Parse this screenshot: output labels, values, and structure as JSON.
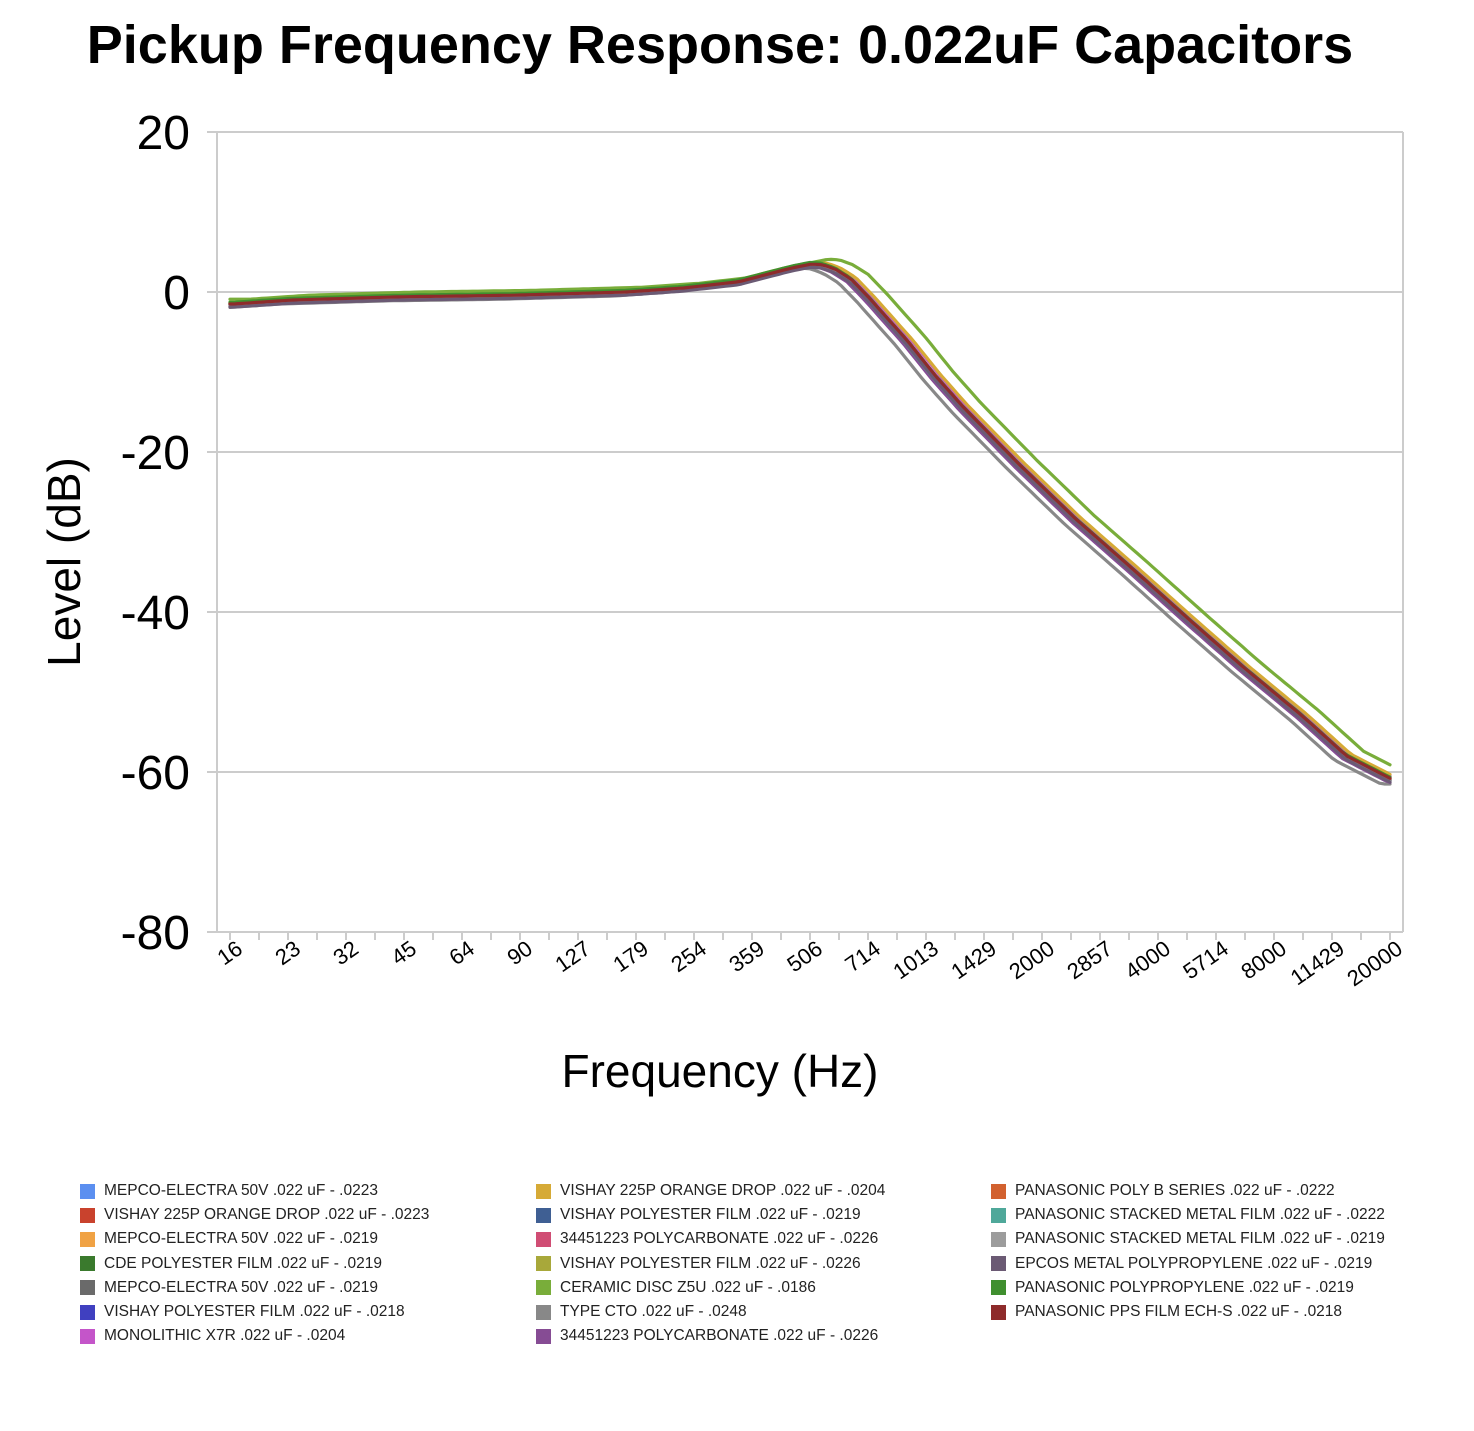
{
  "chart_data": {
    "type": "line",
    "title": "Pickup Frequency Response: 0.022uF Capacitors",
    "xlabel": "Frequency (Hz)",
    "ylabel": "Level (dB)",
    "ylim": [
      -80,
      20
    ],
    "yticks": [
      "20",
      "0",
      "-20",
      "-40",
      "-60",
      "-80"
    ],
    "x_scale": "log2 (categorical ticks)",
    "x_ticks": [
      "16",
      "23",
      "32",
      "45",
      "64",
      "90",
      "127",
      "179",
      "254",
      "359",
      "506",
      "714",
      "1013",
      "1429",
      "2000",
      "2857",
      "4000",
      "5714",
      "8000",
      "11429",
      "20000"
    ],
    "grid": "horizontal",
    "legend_position": "bottom",
    "base_curve": {
      "x": [
        16,
        23,
        32,
        45,
        64,
        90,
        127,
        179,
        254,
        359,
        450,
        506,
        560,
        600,
        650,
        714,
        800,
        900,
        1013,
        1200,
        1429,
        2000,
        2857,
        4000,
        5714,
        8000,
        11429,
        15000,
        20000
      ],
      "y": [
        -1.5,
        -1.0,
        -0.8,
        -0.6,
        -0.5,
        -0.4,
        -0.2,
        0.0,
        0.5,
        1.3,
        2.5,
        3.1,
        3.5,
        3.4,
        2.8,
        1.6,
        -0.8,
        -3.5,
        -6.2,
        -10.5,
        -14.5,
        -21.5,
        -28.5,
        -34.5,
        -41.0,
        -47.0,
        -53.0,
        -58.0,
        -61.0
      ]
    },
    "series": [
      {
        "name": "MEPCO-ELECTRA 50V .022 uF - .0223",
        "color": "#5b8ff0",
        "shift": 0.0,
        "offset": 0.0
      },
      {
        "name": "VISHAY 225P ORANGE DROP .022 uF - .0223",
        "color": "#c9422d",
        "shift": 0.0,
        "offset": 0.0
      },
      {
        "name": "MEPCO-ELECTRA 50V .022 uF - .0219",
        "color": "#f0a244",
        "shift": 0.02,
        "offset": 0.0
      },
      {
        "name": "CDE POLYESTER FILM .022 uF - .0219",
        "color": "#3a7a2d",
        "shift": 0.02,
        "offset": 0.1
      },
      {
        "name": "MEPCO-ELECTRA 50V .022 uF - .0219",
        "color": "#6a6a6a",
        "shift": 0.02,
        "offset": -0.2
      },
      {
        "name": "VISHAY POLYESTER FILM .022 uF - .0218",
        "color": "#4040c0",
        "shift": 0.03,
        "offset": -0.3
      },
      {
        "name": "MONOLITHIC X7R .022 uF - .0204",
        "color": "#c455c9",
        "shift": 0.07,
        "offset": 0.0
      },
      {
        "name": "VISHAY 225P ORANGE DROP .022 uF - .0204",
        "color": "#d6aa36",
        "shift": 0.07,
        "offset": 0.2
      },
      {
        "name": "VISHAY POLYESTER FILM .022 uF - .0219",
        "color": "#3f5f93",
        "shift": 0.02,
        "offset": -0.1
      },
      {
        "name": "34451223 POLYCARBONATE .022 uF - .0226",
        "color": "#d04d74",
        "shift": -0.01,
        "offset": 0.0
      },
      {
        "name": "VISHAY POLYESTER FILM .022 uF - .0226",
        "color": "#a8a83a",
        "shift": -0.01,
        "offset": 0.1
      },
      {
        "name": "CERAMIC DISC Z5U .022 uF - .0186",
        "color": "#79ad3a",
        "shift": 0.18,
        "offset": 0.6
      },
      {
        "name": "TYPE CTO .022 uF - .0248",
        "color": "#888888",
        "shift": -0.08,
        "offset": -0.5
      },
      {
        "name": "34451223 POLYCARBONATE .022 uF - .0226",
        "color": "#864c94",
        "shift": -0.01,
        "offset": -0.3
      },
      {
        "name": "PANASONIC POLY B SERIES .022 uF - .0222",
        "color": "#d2612f",
        "shift": 0.0,
        "offset": 0.0
      },
      {
        "name": "PANASONIC STACKED METAL FILM .022 uF - .0222",
        "color": "#4fa89a",
        "shift": 0.0,
        "offset": -0.1
      },
      {
        "name": "PANASONIC STACKED METAL FILM .022 uF - .0219",
        "color": "#9c9c9c",
        "shift": 0.02,
        "offset": -0.2
      },
      {
        "name": "EPCOS METAL POLYPROPYLENE .022 uF - .0219",
        "color": "#6b5a74",
        "shift": 0.02,
        "offset": -0.4
      },
      {
        "name": "PANASONIC POLYPROPYLENE .022 uF - .0219",
        "color": "#3f8f2f",
        "shift": 0.02,
        "offset": 0.2
      },
      {
        "name": "PANASONIC PPS FILM ECH-S .022 uF - .0218",
        "color": "#8e2b2b",
        "shift": 0.03,
        "offset": 0.0
      }
    ]
  }
}
